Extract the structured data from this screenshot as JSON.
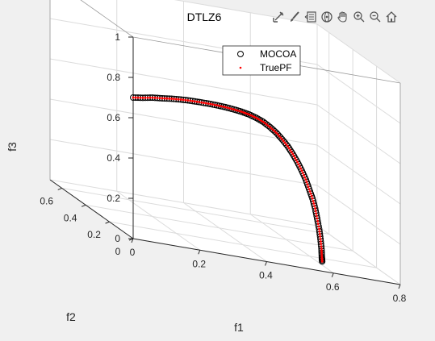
{
  "toolbar": {
    "icons": [
      "data-cursor-icon",
      "brush-icon",
      "legend-toggle-icon",
      "rotate-3d-icon",
      "pan-hand-icon",
      "zoom-in-icon",
      "zoom-out-icon",
      "home-icon"
    ]
  },
  "chart_data": {
    "type": "scatter",
    "dimensions": 3,
    "title": "DTLZ6",
    "xlabel": "f1",
    "ylabel": "f2",
    "zlabel": "f3",
    "xlim": [
      0,
      0.8
    ],
    "ylim": [
      0,
      0.7
    ],
    "zlim": [
      0,
      1
    ],
    "x_ticks": [
      "0",
      "0.2",
      "0.4",
      "0.6",
      "0.8"
    ],
    "y_ticks": [
      "0",
      "0.2",
      "0.4",
      "0.6"
    ],
    "z_ticks": [
      "0",
      "0.2",
      "0.4",
      "0.6",
      "0.8",
      "1"
    ],
    "grid": true,
    "legend": {
      "position": "top-right",
      "entries": [
        "MOCOA",
        "TruePF"
      ]
    },
    "colors": {
      "MOCOA": "#000000",
      "TruePF": "#ff0000"
    },
    "series": [
      {
        "name": "MOCOA",
        "marker": "circle-open",
        "points": [
          [
            0.0,
            0.0,
            0.7
          ],
          [
            0.029,
            0.0,
            0.707
          ],
          [
            0.058,
            0.0,
            0.716
          ],
          [
            0.087,
            0.0,
            0.721
          ],
          [
            0.115,
            0.0,
            0.727
          ],
          [
            0.143,
            0.0,
            0.731
          ],
          [
            0.171,
            0.0,
            0.733
          ],
          [
            0.198,
            0.0,
            0.734
          ],
          [
            0.225,
            0.0,
            0.734
          ],
          [
            0.251,
            0.0,
            0.733
          ],
          [
            0.276,
            0.0,
            0.731
          ],
          [
            0.301,
            0.0,
            0.727
          ],
          [
            0.325,
            0.0,
            0.722
          ],
          [
            0.347,
            0.0,
            0.715
          ],
          [
            0.369,
            0.0,
            0.704
          ],
          [
            0.39,
            0.0,
            0.69
          ],
          [
            0.41,
            0.0,
            0.67
          ],
          [
            0.429,
            0.0,
            0.647
          ],
          [
            0.446,
            0.0,
            0.62
          ],
          [
            0.463,
            0.0,
            0.59
          ],
          [
            0.478,
            0.0,
            0.556
          ],
          [
            0.492,
            0.0,
            0.52
          ],
          [
            0.505,
            0.0,
            0.481
          ],
          [
            0.517,
            0.0,
            0.44
          ],
          [
            0.527,
            0.0,
            0.396
          ],
          [
            0.537,
            0.0,
            0.352
          ],
          [
            0.545,
            0.0,
            0.305
          ],
          [
            0.551,
            0.0,
            0.257
          ],
          [
            0.557,
            0.0,
            0.206
          ],
          [
            0.561,
            0.0,
            0.158
          ],
          [
            0.564,
            0.0,
            0.11
          ],
          [
            0.565,
            0.0,
            0.07
          ],
          [
            0.566,
            0.0,
            0.048
          ]
        ]
      },
      {
        "name": "TruePF",
        "marker": "point",
        "points": [
          [
            0.0,
            0.0,
            0.7
          ],
          [
            0.029,
            0.0,
            0.707
          ],
          [
            0.058,
            0.0,
            0.716
          ],
          [
            0.087,
            0.0,
            0.721
          ],
          [
            0.115,
            0.0,
            0.727
          ],
          [
            0.143,
            0.0,
            0.731
          ],
          [
            0.171,
            0.0,
            0.733
          ],
          [
            0.198,
            0.0,
            0.734
          ],
          [
            0.225,
            0.0,
            0.734
          ],
          [
            0.251,
            0.0,
            0.733
          ],
          [
            0.276,
            0.0,
            0.731
          ],
          [
            0.301,
            0.0,
            0.727
          ],
          [
            0.325,
            0.0,
            0.722
          ],
          [
            0.347,
            0.0,
            0.715
          ],
          [
            0.369,
            0.0,
            0.704
          ],
          [
            0.39,
            0.0,
            0.69
          ],
          [
            0.41,
            0.0,
            0.67
          ],
          [
            0.429,
            0.0,
            0.647
          ],
          [
            0.446,
            0.0,
            0.62
          ],
          [
            0.463,
            0.0,
            0.59
          ],
          [
            0.478,
            0.0,
            0.556
          ],
          [
            0.492,
            0.0,
            0.52
          ],
          [
            0.505,
            0.0,
            0.481
          ],
          [
            0.517,
            0.0,
            0.44
          ],
          [
            0.527,
            0.0,
            0.396
          ],
          [
            0.537,
            0.0,
            0.352
          ],
          [
            0.545,
            0.0,
            0.305
          ],
          [
            0.551,
            0.0,
            0.257
          ],
          [
            0.557,
            0.0,
            0.206
          ],
          [
            0.561,
            0.0,
            0.158
          ],
          [
            0.564,
            0.0,
            0.11
          ],
          [
            0.565,
            0.0,
            0.07
          ],
          [
            0.566,
            0.0,
            0.048
          ]
        ]
      }
    ]
  }
}
